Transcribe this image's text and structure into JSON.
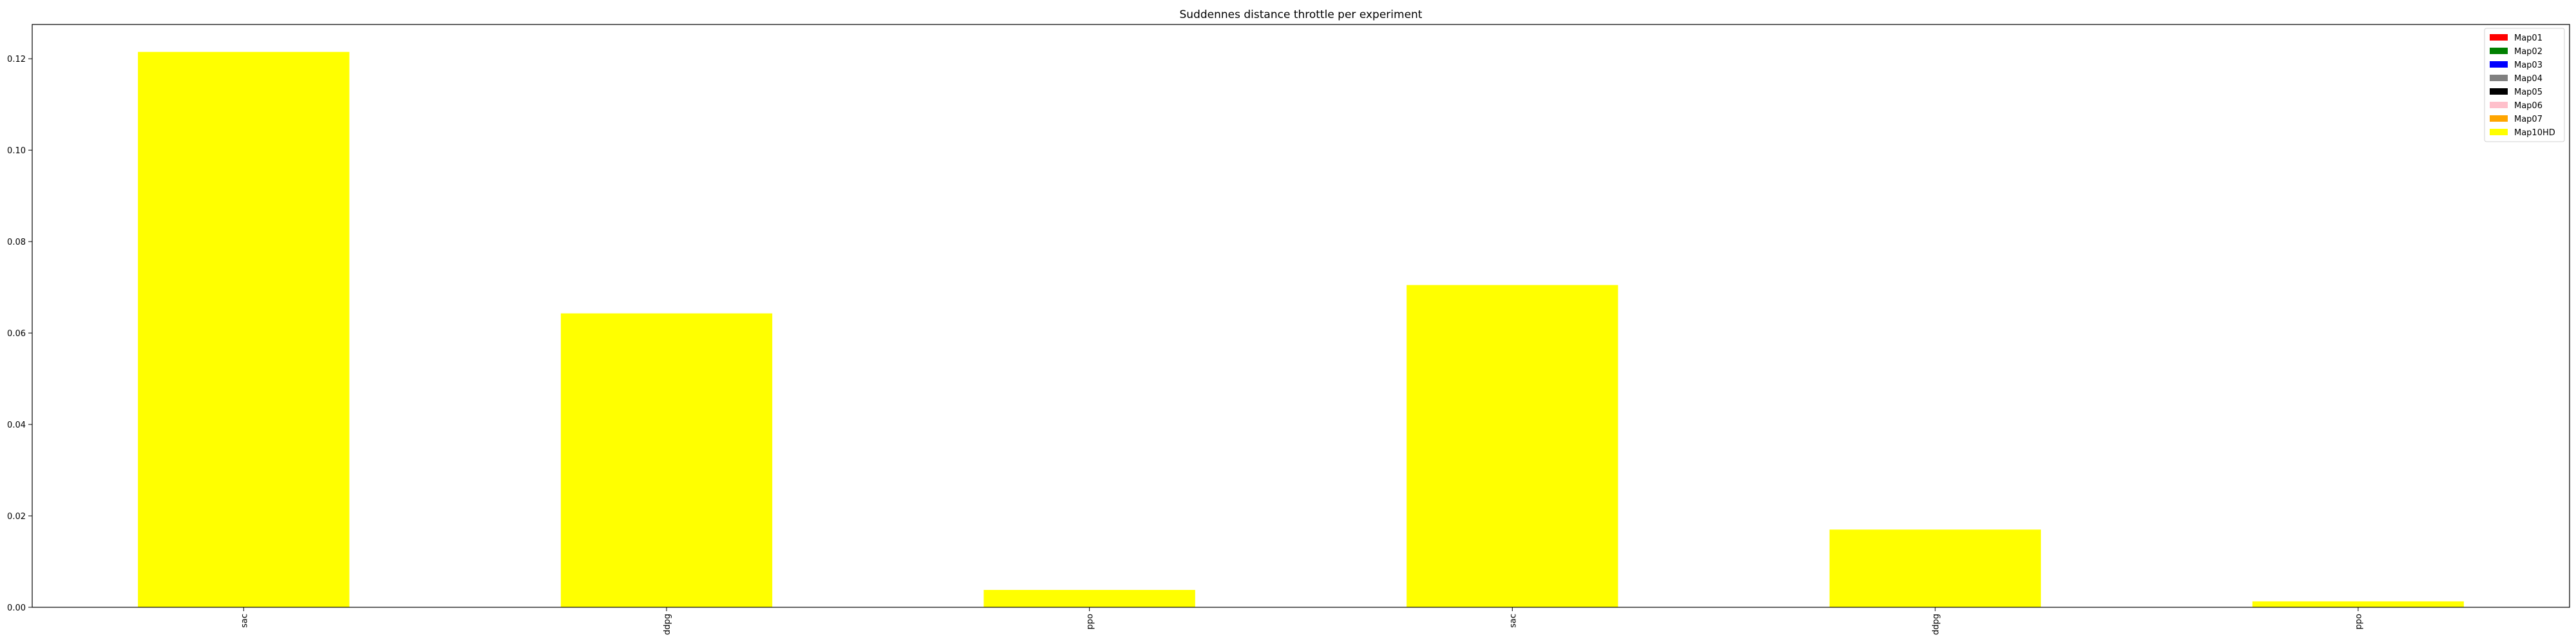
{
  "chart_data": {
    "type": "bar",
    "title": "Suddennes distance throttle per experiment",
    "xlabel": "",
    "ylabel": "",
    "categories": [
      "sac",
      "ddpg",
      "ppo",
      "sac",
      "ddpg",
      "ppo"
    ],
    "series": [
      {
        "name": "Map01",
        "color": "#ff0000",
        "values": [
          0,
          0,
          0,
          0,
          0,
          0
        ]
      },
      {
        "name": "Map02",
        "color": "#008000",
        "values": [
          0,
          0,
          0,
          0,
          0,
          0
        ]
      },
      {
        "name": "Map03",
        "color": "#0000ff",
        "values": [
          0,
          0,
          0,
          0,
          0,
          0
        ]
      },
      {
        "name": "Map04",
        "color": "#808080",
        "values": [
          0,
          0,
          0,
          0,
          0,
          0
        ]
      },
      {
        "name": "Map05",
        "color": "#000000",
        "values": [
          0,
          0,
          0,
          0,
          0,
          0
        ]
      },
      {
        "name": "Map06",
        "color": "#ffc0cb",
        "values": [
          0,
          0,
          0,
          0,
          0,
          0
        ]
      },
      {
        "name": "Map07",
        "color": "#ffa500",
        "values": [
          0,
          0,
          0,
          0,
          0,
          0
        ]
      },
      {
        "name": "Map10HD",
        "color": "#ffff00",
        "values": [
          0.1215,
          0.0643,
          0.0038,
          0.0705,
          0.017,
          0.0013
        ]
      }
    ],
    "ylim": [
      0,
      0.1275
    ],
    "yticks": [
      "0.00",
      "0.02",
      "0.04",
      "0.06",
      "0.08",
      "0.10",
      "0.12"
    ],
    "grid": false,
    "legend_position": "top-right",
    "stacked": true
  }
}
